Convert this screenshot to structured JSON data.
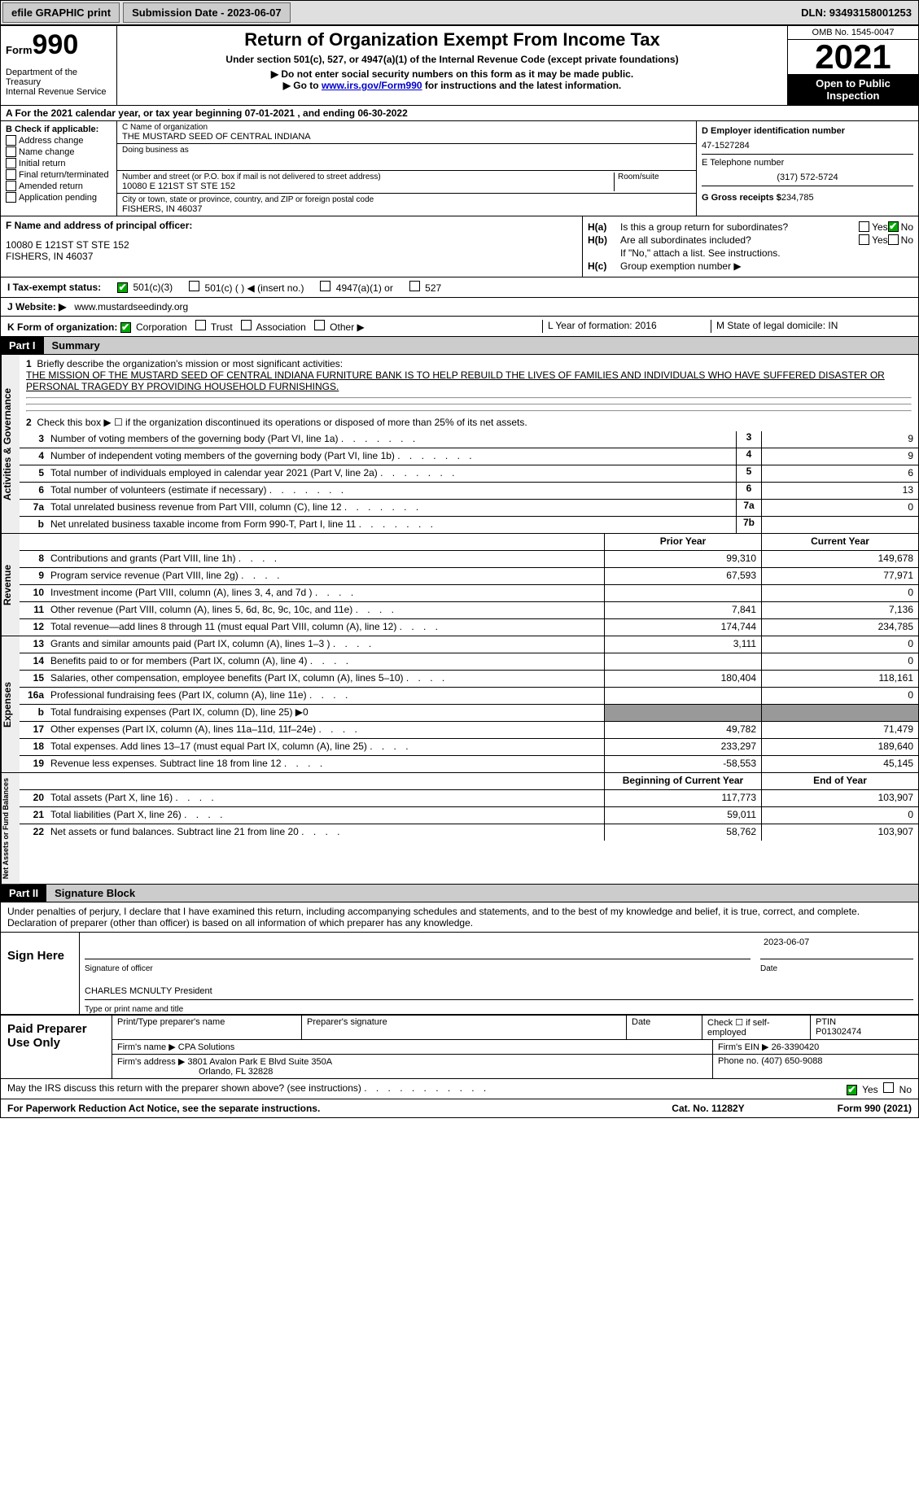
{
  "topbar": {
    "efile": "efile GRAPHIC print",
    "submission_label": "Submission Date - 2023-06-07",
    "dln": "DLN: 93493158001253"
  },
  "header": {
    "form_label": "Form",
    "form_num": "990",
    "dept": "Department of the Treasury\nInternal Revenue Service",
    "title": "Return of Organization Exempt From Income Tax",
    "sub1": "Under section 501(c), 527, or 4947(a)(1) of the Internal Revenue Code (except private foundations)",
    "sub2": "▶ Do not enter social security numbers on this form as it may be made public.",
    "sub3_pre": "▶ Go to ",
    "sub3_link": "www.irs.gov/Form990",
    "sub3_post": " for instructions and the latest information.",
    "omb": "OMB No. 1545-0047",
    "year": "2021",
    "open": "Open to Public Inspection"
  },
  "row_a": "A For the 2021 calendar year, or tax year beginning 07-01-2021    , and ending 06-30-2022",
  "col_b": {
    "hdr": "B Check if applicable:",
    "items": [
      "Address change",
      "Name change",
      "Initial return",
      "Final return/terminated",
      "Amended return",
      "Application pending"
    ]
  },
  "col_c": {
    "name_lbl": "C Name of organization",
    "name": "THE MUSTARD SEED OF CENTRAL INDIANA",
    "dba_lbl": "Doing business as",
    "street_lbl": "Number and street (or P.O. box if mail is not delivered to street address)",
    "room_lbl": "Room/suite",
    "street": "10080 E 121ST ST STE 152",
    "city_lbl": "City or town, state or province, country, and ZIP or foreign postal code",
    "city": "FISHERS, IN  46037"
  },
  "col_d": {
    "ein_lbl": "D Employer identification number",
    "ein": "47-1527284",
    "tel_lbl": "E Telephone number",
    "tel": "(317) 572-5724",
    "gross_lbl": "G Gross receipts $",
    "gross": "234,785"
  },
  "f": {
    "lbl": "F  Name and address of principal officer:",
    "addr1": "10080 E 121ST ST STE 152",
    "addr2": "FISHERS, IN  46037"
  },
  "h": {
    "a": "Is this a group return for subordinates?",
    "b": "Are all subordinates included?",
    "b_note": "If \"No,\" attach a list. See instructions.",
    "c": "Group exemption number ▶",
    "yes": "Yes",
    "no": "No"
  },
  "i": {
    "lbl": "I    Tax-exempt status:",
    "opts": [
      "501(c)(3)",
      "501(c) (   ) ◀ (insert no.)",
      "4947(a)(1) or",
      "527"
    ]
  },
  "j": {
    "lbl": "J   Website: ▶",
    "val": "www.mustardseedindy.org"
  },
  "k": {
    "lbl": "K Form of organization:",
    "opts": [
      "Corporation",
      "Trust",
      "Association",
      "Other ▶"
    ],
    "l": "L Year of formation: 2016",
    "m": "M State of legal domicile: IN"
  },
  "part1": {
    "num": "Part I",
    "title": "Summary",
    "mission_lbl": "Briefly describe the organization's mission or most significant activities:",
    "mission": "THE MISSION OF THE MUSTARD SEED OF CENTRAL INDIANA FURNITURE BANK IS TO HELP REBUILD THE LIVES OF FAMILIES AND INDIVIDUALS WHO HAVE SUFFERED DISASTER OR PERSONAL TRAGEDY BY PROVIDING HOUSEHOLD FURNISHINGS.",
    "line2": "Check this box ▶ ☐ if the organization discontinued its operations or disposed of more than 25% of its net assets."
  },
  "gov": {
    "side": "Activities & Governance",
    "rows": [
      {
        "n": "3",
        "d": "Number of voting members of the governing body (Part VI, line 1a)",
        "box": "3",
        "v": "9"
      },
      {
        "n": "4",
        "d": "Number of independent voting members of the governing body (Part VI, line 1b)",
        "box": "4",
        "v": "9"
      },
      {
        "n": "5",
        "d": "Total number of individuals employed in calendar year 2021 (Part V, line 2a)",
        "box": "5",
        "v": "6"
      },
      {
        "n": "6",
        "d": "Total number of volunteers (estimate if necessary)",
        "box": "6",
        "v": "13"
      },
      {
        "n": "7a",
        "d": "Total unrelated business revenue from Part VIII, column (C), line 12",
        "box": "7a",
        "v": "0"
      },
      {
        "n": "b",
        "d": "Net unrelated business taxable income from Form 990-T, Part I, line 11",
        "box": "7b",
        "v": ""
      }
    ]
  },
  "revenue": {
    "side": "Revenue",
    "hdr_prior": "Prior Year",
    "hdr_curr": "Current Year",
    "rows": [
      {
        "n": "8",
        "d": "Contributions and grants (Part VIII, line 1h)",
        "p": "99,310",
        "c": "149,678"
      },
      {
        "n": "9",
        "d": "Program service revenue (Part VIII, line 2g)",
        "p": "67,593",
        "c": "77,971"
      },
      {
        "n": "10",
        "d": "Investment income (Part VIII, column (A), lines 3, 4, and 7d )",
        "p": "",
        "c": "0"
      },
      {
        "n": "11",
        "d": "Other revenue (Part VIII, column (A), lines 5, 6d, 8c, 9c, 10c, and 11e)",
        "p": "7,841",
        "c": "7,136"
      },
      {
        "n": "12",
        "d": "Total revenue—add lines 8 through 11 (must equal Part VIII, column (A), line 12)",
        "p": "174,744",
        "c": "234,785"
      }
    ]
  },
  "expenses": {
    "side": "Expenses",
    "rows": [
      {
        "n": "13",
        "d": "Grants and similar amounts paid (Part IX, column (A), lines 1–3 )",
        "p": "3,111",
        "c": "0"
      },
      {
        "n": "14",
        "d": "Benefits paid to or for members (Part IX, column (A), line 4)",
        "p": "",
        "c": "0"
      },
      {
        "n": "15",
        "d": "Salaries, other compensation, employee benefits (Part IX, column (A), lines 5–10)",
        "p": "180,404",
        "c": "118,161"
      },
      {
        "n": "16a",
        "d": "Professional fundraising fees (Part IX, column (A), line 11e)",
        "p": "",
        "c": "0"
      },
      {
        "n": "b",
        "d": "Total fundraising expenses (Part IX, column (D), line 25) ▶0",
        "grey": true
      },
      {
        "n": "17",
        "d": "Other expenses (Part IX, column (A), lines 11a–11d, 11f–24e)",
        "p": "49,782",
        "c": "71,479"
      },
      {
        "n": "18",
        "d": "Total expenses. Add lines 13–17 (must equal Part IX, column (A), line 25)",
        "p": "233,297",
        "c": "189,640"
      },
      {
        "n": "19",
        "d": "Revenue less expenses. Subtract line 18 from line 12",
        "p": "-58,553",
        "c": "45,145"
      }
    ]
  },
  "netassets": {
    "side": "Net Assets or Fund Balances",
    "hdr_prior": "Beginning of Current Year",
    "hdr_curr": "End of Year",
    "rows": [
      {
        "n": "20",
        "d": "Total assets (Part X, line 16)",
        "p": "117,773",
        "c": "103,907"
      },
      {
        "n": "21",
        "d": "Total liabilities (Part X, line 26)",
        "p": "59,011",
        "c": "0"
      },
      {
        "n": "22",
        "d": "Net assets or fund balances. Subtract line 21 from line 20",
        "p": "58,762",
        "c": "103,907"
      }
    ]
  },
  "part2": {
    "num": "Part II",
    "title": "Signature Block"
  },
  "penalty": "Under penalties of perjury, I declare that I have examined this return, including accompanying schedules and statements, and to the best of my knowledge and belief, it is true, correct, and complete. Declaration of preparer (other than officer) is based on all information of which preparer has any knowledge.",
  "sign": {
    "here": "Sign Here",
    "sig_lbl": "Signature of officer",
    "date": "2023-06-07",
    "date_lbl": "Date",
    "name": "CHARLES MCNULTY President",
    "name_lbl": "Type or print name and title"
  },
  "prep": {
    "title": "Paid Preparer Use Only",
    "r1": {
      "c1": "Print/Type preparer's name",
      "c2": "Preparer's signature",
      "c3": "Date",
      "c4": "Check ☐ if self-employed",
      "c5_lbl": "PTIN",
      "c5": "P01302474"
    },
    "r2": {
      "lbl": "Firm's name   ▶",
      "v": "CPA Solutions",
      "ein_lbl": "Firm's EIN ▶",
      "ein": "26-3390420"
    },
    "r3": {
      "lbl": "Firm's address ▶",
      "v1": "3801 Avalon Park E Blvd Suite 350A",
      "v2": "Orlando, FL  32828",
      "ph_lbl": "Phone no.",
      "ph": "(407) 650-9088"
    }
  },
  "discuss": "May the IRS discuss this return with the preparer shown above? (see instructions)",
  "footer": {
    "l": "For Paperwork Reduction Act Notice, see the separate instructions.",
    "m": "Cat. No. 11282Y",
    "r": "Form 990 (2021)"
  }
}
